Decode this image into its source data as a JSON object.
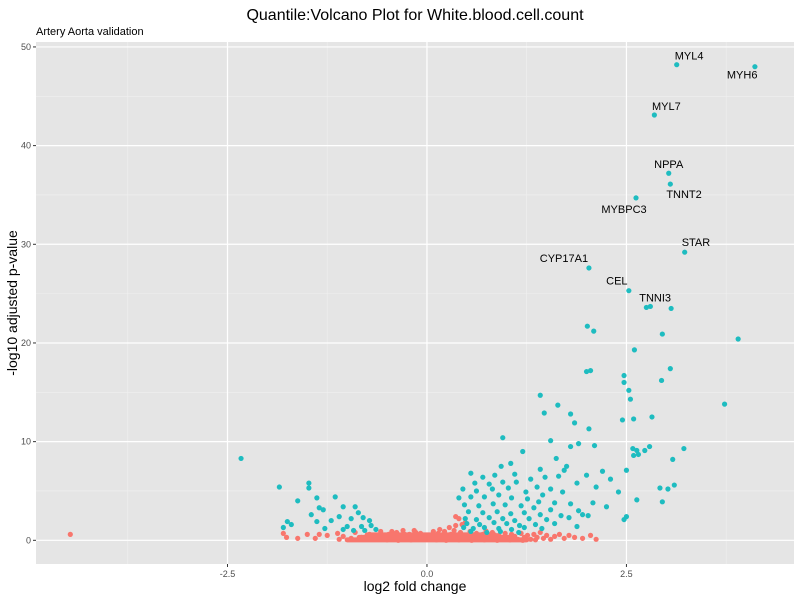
{
  "chart_data": {
    "type": "scatter",
    "title": "Quantile:Volcano Plot for White.blood.cell.count",
    "subtitle": "Artery Aorta validation",
    "xlabel": "log2 fold change",
    "ylabel": "-log10 adjusted p-value",
    "xlim": [
      -4.9,
      4.6
    ],
    "ylim": [
      -2.4,
      50.5
    ],
    "x_ticks": [
      {
        "value": -2.5,
        "label": "-2.5"
      },
      {
        "value": 0,
        "label": "0.0"
      },
      {
        "value": 2.5,
        "label": "2.5"
      }
    ],
    "y_ticks": [
      {
        "value": 0,
        "label": "0"
      },
      {
        "value": 10,
        "label": "10"
      },
      {
        "value": 20,
        "label": "20"
      },
      {
        "value": 30,
        "label": "30"
      },
      {
        "value": 40,
        "label": "40"
      },
      {
        "value": 50,
        "label": "50"
      }
    ],
    "grid": true,
    "colors": {
      "significant": "#1ebcc0",
      "not_significant": "#f8766d",
      "panel_bg": "#e5e5e5",
      "grid_major": "#ffffff",
      "grid_minor": "#f0f0f0"
    },
    "labels": [
      {
        "text": "MYL4",
        "x": 3.13,
        "y": 48.2
      },
      {
        "text": "MYH6",
        "x": 4.11,
        "y": 48.0
      },
      {
        "text": "MYL7",
        "x": 2.85,
        "y": 43.1
      },
      {
        "text": "NPPA",
        "x": 3.03,
        "y": 37.2
      },
      {
        "text": "TNNT2",
        "x": 3.05,
        "y": 36.1
      },
      {
        "text": "MYBPC3",
        "x": 2.62,
        "y": 34.7
      },
      {
        "text": "STAR",
        "x": 3.23,
        "y": 29.2
      },
      {
        "text": "CYP17A1",
        "x": 2.03,
        "y": 27.6
      },
      {
        "text": "CEL",
        "x": 2.53,
        "y": 25.3
      },
      {
        "text": "TNNI3",
        "x": 3.06,
        "y": 23.5
      }
    ],
    "series": [
      {
        "significant": true,
        "points": [
          [
            3.13,
            48.2
          ],
          [
            4.11,
            48.0
          ],
          [
            2.85,
            43.1
          ],
          [
            3.03,
            37.2
          ],
          [
            3.05,
            36.1
          ],
          [
            2.62,
            34.7
          ],
          [
            3.23,
            29.2
          ],
          [
            2.03,
            27.6
          ],
          [
            2.53,
            25.3
          ],
          [
            3.06,
            23.5
          ],
          [
            2.75,
            23.6
          ],
          [
            2.8,
            23.7
          ],
          [
            3.9,
            20.4
          ],
          [
            2.01,
            21.7
          ],
          [
            2.09,
            21.2
          ],
          [
            2.95,
            20.9
          ],
          [
            2.6,
            19.3
          ],
          [
            3.05,
            17.4
          ],
          [
            2.05,
            17.2
          ],
          [
            2.0,
            17.1
          ],
          [
            2.47,
            16.7
          ],
          [
            2.94,
            16.2
          ],
          [
            2.47,
            16.0
          ],
          [
            2.53,
            15.2
          ],
          [
            2.55,
            14.3
          ],
          [
            1.42,
            14.7
          ],
          [
            1.64,
            13.7
          ],
          [
            3.73,
            13.8
          ],
          [
            1.47,
            12.9
          ],
          [
            1.8,
            12.8
          ],
          [
            2.82,
            12.5
          ],
          [
            2.45,
            12.2
          ],
          [
            2.59,
            12.3
          ],
          [
            1.85,
            11.9
          ],
          [
            2.03,
            11.3
          ],
          [
            0.95,
            10.4
          ],
          [
            1.55,
            10.1
          ],
          [
            1.9,
            9.8
          ],
          [
            2.1,
            9.6
          ],
          [
            2.58,
            9.3
          ],
          [
            2.73,
            9.1
          ],
          [
            2.63,
            9.1
          ],
          [
            3.22,
            9.3
          ],
          [
            2.59,
            8.6
          ],
          [
            2.65,
            8.7
          ],
          [
            3.08,
            8.2
          ],
          [
            2.79,
            9.5
          ],
          [
            1.8,
            9.5
          ],
          [
            1.2,
            9.0
          ],
          [
            1.62,
            8.3
          ],
          [
            0.93,
            7.5
          ],
          [
            1.05,
            7.8
          ],
          [
            1.42,
            7.2
          ],
          [
            1.72,
            7.1
          ],
          [
            1.75,
            7.5
          ],
          [
            2.2,
            7.0
          ],
          [
            2.5,
            7.1
          ],
          [
            -2.33,
            8.3
          ],
          [
            0.55,
            6.8
          ],
          [
            0.7,
            6.4
          ],
          [
            0.85,
            6.6
          ],
          [
            1.1,
            6.7
          ],
          [
            1.3,
            6.2
          ],
          [
            1.48,
            6.4
          ],
          [
            1.65,
            6.5
          ],
          [
            2.0,
            6.6
          ],
          [
            2.3,
            6.2
          ],
          [
            0.6,
            5.8
          ],
          [
            0.78,
            5.7
          ],
          [
            0.95,
            5.9
          ],
          [
            1.12,
            5.9
          ],
          [
            1.38,
            5.4
          ],
          [
            1.55,
            5.2
          ],
          [
            1.88,
            5.8
          ],
          [
            2.12,
            5.4
          ],
          [
            2.92,
            5.3
          ],
          [
            3.02,
            5.2
          ],
          [
            3.1,
            5.6
          ],
          [
            0.45,
            5.2
          ],
          [
            0.62,
            5.0
          ],
          [
            0.82,
            5.2
          ],
          [
            1.02,
            5.3
          ],
          [
            1.24,
            4.9
          ],
          [
            1.45,
            4.6
          ],
          [
            1.7,
            4.9
          ],
          [
            2.4,
            4.9
          ],
          [
            2.63,
            4.1
          ],
          [
            2.95,
            3.9
          ],
          [
            0.4,
            4.3
          ],
          [
            0.55,
            4.4
          ],
          [
            0.72,
            4.4
          ],
          [
            0.9,
            4.6
          ],
          [
            1.06,
            4.3
          ],
          [
            1.26,
            4.2
          ],
          [
            1.4,
            3.9
          ],
          [
            1.6,
            3.8
          ],
          [
            1.8,
            3.7
          ],
          [
            2.08,
            3.8
          ],
          [
            0.47,
            3.6
          ],
          [
            0.65,
            3.5
          ],
          [
            0.83,
            3.7
          ],
          [
            0.98,
            3.6
          ],
          [
            1.18,
            3.5
          ],
          [
            1.34,
            3.3
          ],
          [
            1.55,
            3.1
          ],
          [
            1.9,
            3.0
          ],
          [
            2.25,
            3.4
          ],
          [
            0.52,
            2.9
          ],
          [
            0.7,
            2.8
          ],
          [
            0.88,
            2.9
          ],
          [
            1.05,
            2.7
          ],
          [
            1.22,
            2.8
          ],
          [
            1.42,
            2.6
          ],
          [
            1.68,
            2.5
          ],
          [
            1.95,
            2.6
          ],
          [
            2.47,
            2.1
          ],
          [
            2.5,
            2.4
          ],
          [
            0.48,
            2.2
          ],
          [
            0.62,
            2.1
          ],
          [
            0.78,
            2.3
          ],
          [
            0.95,
            2.2
          ],
          [
            1.1,
            2.0
          ],
          [
            1.28,
            2.2
          ],
          [
            1.5,
            2.1
          ],
          [
            1.78,
            2.3
          ],
          [
            2.02,
            2.5
          ],
          [
            0.5,
            1.7
          ],
          [
            0.66,
            1.6
          ],
          [
            0.84,
            1.8
          ],
          [
            1.0,
            1.7
          ],
          [
            1.16,
            1.5
          ],
          [
            1.36,
            1.6
          ],
          [
            1.6,
            1.7
          ],
          [
            1.88,
            1.4
          ],
          [
            0.46,
            1.3
          ],
          [
            0.58,
            1.2
          ],
          [
            0.72,
            1.3
          ],
          [
            0.9,
            1.2
          ],
          [
            1.06,
            1.1
          ],
          [
            1.22,
            1.3
          ],
          [
            1.44,
            1.2
          ],
          [
            0.55,
            0.9
          ],
          [
            0.75,
            0.8
          ],
          [
            0.92,
            0.9
          ],
          [
            1.15,
            0.8
          ],
          [
            -1.48,
            5.8
          ],
          [
            -1.48,
            5.3
          ],
          [
            -1.85,
            5.4
          ],
          [
            -1.15,
            4.4
          ],
          [
            -1.38,
            4.3
          ],
          [
            -1.62,
            4.0
          ],
          [
            -1.35,
            3.3
          ],
          [
            -1.05,
            3.4
          ],
          [
            -0.9,
            3.4
          ],
          [
            -0.86,
            2.8
          ],
          [
            -1.3,
            3.1
          ],
          [
            -1.45,
            2.6
          ],
          [
            -1.1,
            2.4
          ],
          [
            -0.95,
            2.2
          ],
          [
            -0.8,
            2.3
          ],
          [
            -0.72,
            2.0
          ],
          [
            -1.2,
            2.0
          ],
          [
            -1.38,
            1.9
          ],
          [
            -0.7,
            1.5
          ],
          [
            -0.82,
            1.4
          ],
          [
            -1.0,
            1.4
          ],
          [
            -1.28,
            1.2
          ],
          [
            -0.64,
            1.1
          ],
          [
            -0.78,
            1.0
          ],
          [
            -0.92,
            1.0
          ],
          [
            -1.05,
            1.1
          ],
          [
            -1.7,
            1.6
          ],
          [
            -1.75,
            1.9
          ],
          [
            -1.8,
            1.3
          ]
        ]
      },
      {
        "significant": false,
        "points": [
          [
            -4.47,
            0.6
          ],
          [
            -1.8,
            0.7
          ],
          [
            -1.76,
            0.3
          ],
          [
            -1.35,
            0.6
          ],
          [
            -1.4,
            0.2
          ],
          [
            -1.12,
            0.7
          ],
          [
            -1.05,
            0.4
          ],
          [
            -0.9,
            0.8
          ],
          [
            -0.82,
            0.3
          ],
          [
            -0.72,
            0.6
          ],
          [
            -0.65,
            0.2
          ],
          [
            -0.58,
            0.9
          ],
          [
            -0.55,
            0.4
          ],
          [
            -0.48,
            0.6
          ],
          [
            -0.42,
            0.2
          ],
          [
            -0.38,
            0.8
          ],
          [
            -0.34,
            0.4
          ],
          [
            -0.3,
            1.0
          ],
          [
            -0.26,
            0.2
          ],
          [
            -0.22,
            0.6
          ],
          [
            -0.18,
            0.3
          ],
          [
            -0.14,
            0.8
          ],
          [
            -0.1,
            0.2
          ],
          [
            -0.06,
            0.5
          ],
          [
            -0.03,
            0.1
          ],
          [
            0.0,
            0.3
          ],
          [
            -0.62,
            0.1
          ],
          [
            -0.44,
            0.9
          ],
          [
            -0.28,
            0.6
          ],
          [
            -0.16,
            1.0
          ],
          [
            -0.08,
            0.7
          ],
          [
            -0.5,
            0.05
          ],
          [
            -0.36,
            0.0
          ],
          [
            -0.2,
            0.05
          ],
          [
            -0.7,
            0.1
          ],
          [
            -0.95,
            0.2
          ],
          [
            -1.1,
            0.1
          ],
          [
            -1.25,
            0.5
          ],
          [
            -1.5,
            0.6
          ],
          [
            -1.62,
            0.2
          ],
          [
            0.03,
            0.2
          ],
          [
            0.06,
            0.5
          ],
          [
            0.1,
            0.3
          ],
          [
            0.14,
            0.7
          ],
          [
            0.18,
            0.4
          ],
          [
            0.22,
            0.9
          ],
          [
            0.26,
            0.2
          ],
          [
            0.3,
            0.6
          ],
          [
            0.34,
            1.0
          ],
          [
            0.38,
            0.4
          ],
          [
            0.42,
            0.8
          ],
          [
            0.46,
            0.1
          ],
          [
            0.5,
            0.5
          ],
          [
            0.54,
            0.9
          ],
          [
            0.58,
            0.3
          ],
          [
            0.62,
            0.7
          ],
          [
            0.66,
            0.2
          ],
          [
            0.7,
            0.6
          ],
          [
            0.74,
            0.95
          ],
          [
            0.78,
            0.4
          ],
          [
            0.82,
            0.8
          ],
          [
            0.86,
            0.1
          ],
          [
            0.9,
            0.5
          ],
          [
            0.94,
            0.3
          ],
          [
            0.98,
            0.7
          ],
          [
            1.02,
            0.2
          ],
          [
            1.06,
            0.6
          ],
          [
            1.1,
            0.4
          ],
          [
            1.14,
            0.1
          ],
          [
            1.18,
            0.7
          ],
          [
            1.22,
            0.3
          ],
          [
            1.26,
            0.5
          ],
          [
            1.3,
            0.1
          ],
          [
            1.34,
            0.6
          ],
          [
            1.38,
            0.3
          ],
          [
            1.42,
            0.8
          ],
          [
            1.46,
            0.2
          ],
          [
            1.5,
            0.5
          ],
          [
            1.55,
            0.1
          ],
          [
            1.6,
            0.4
          ],
          [
            1.66,
            0.6
          ],
          [
            1.72,
            0.2
          ],
          [
            1.78,
            0.5
          ],
          [
            1.85,
            0.3
          ],
          [
            1.95,
            0.2
          ],
          [
            2.05,
            0.5
          ],
          [
            2.12,
            0.1
          ],
          [
            0.08,
            0.9
          ],
          [
            0.16,
            1.1
          ],
          [
            0.28,
            1.3
          ],
          [
            0.36,
            1.5
          ],
          [
            0.44,
            1.6
          ],
          [
            0.48,
            1.8
          ],
          [
            0.4,
            2.2
          ],
          [
            0.36,
            2.4
          ],
          [
            0.12,
            0.05
          ],
          [
            0.24,
            0.0
          ],
          [
            0.4,
            0.05
          ],
          [
            0.56,
            0.0
          ],
          [
            0.72,
            0.05
          ],
          [
            0.88,
            0.0
          ],
          [
            1.04,
            0.05
          ],
          [
            1.2,
            0.0
          ],
          [
            1.36,
            0.05
          ]
        ]
      }
    ]
  }
}
